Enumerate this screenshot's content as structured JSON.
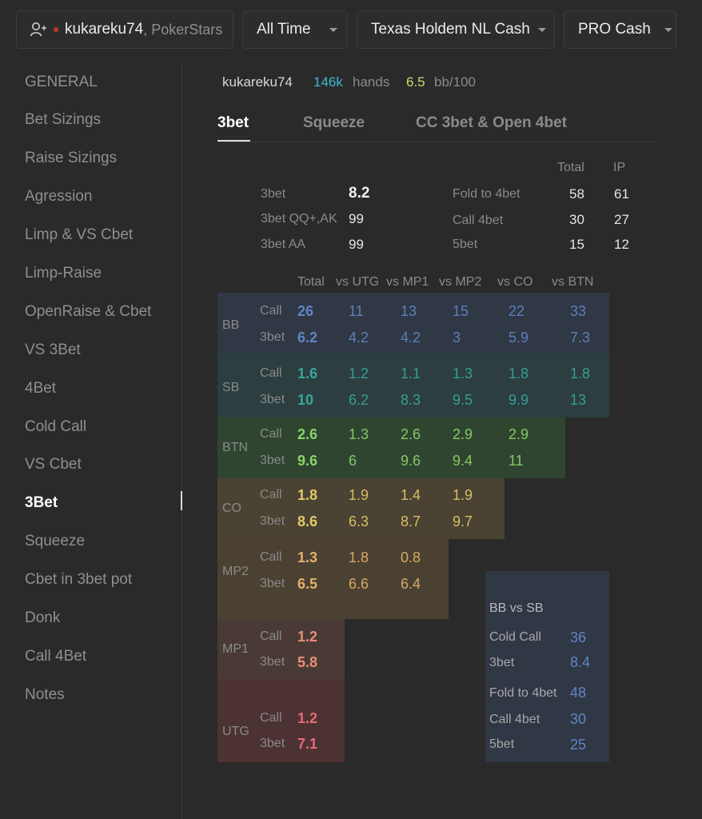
{
  "topbar": {
    "player_name": "kukareku74",
    "site": ", PokerStars",
    "time_filter": "All Time",
    "game": "Texas Holdem NL Cash",
    "profile": "PRO Cash"
  },
  "sidebar": {
    "items": [
      {
        "label": "GENERAL"
      },
      {
        "label": "Bet Sizings"
      },
      {
        "label": "Raise Sizings"
      },
      {
        "label": "Agression"
      },
      {
        "label": "Limp & VS Cbet"
      },
      {
        "label": "Limp-Raise"
      },
      {
        "label": "OpenRaise & Cbet"
      },
      {
        "label": "VS 3Bet"
      },
      {
        "label": "4Bet"
      },
      {
        "label": "Cold Call"
      },
      {
        "label": "VS Cbet"
      },
      {
        "label": "3Bet"
      },
      {
        "label": "Squeeze"
      },
      {
        "label": "Cbet in 3bet pot"
      },
      {
        "label": "Donk"
      },
      {
        "label": "Call 4Bet"
      },
      {
        "label": "Notes"
      }
    ],
    "active_index": 11
  },
  "header": {
    "player": "kukareku74",
    "hands_value": "146k",
    "hands_label": "hands",
    "bb_value": "6.5",
    "bb_label": "bb/100"
  },
  "tabs": [
    "3bet",
    "Squeeze",
    "CC 3bet & Open 4bet"
  ],
  "summary": {
    "col_total": "Total",
    "col_ip": "IP",
    "left": [
      {
        "label": "3bet",
        "value": "8.2"
      },
      {
        "label": "3bet QQ+,AK",
        "value": "99"
      },
      {
        "label": "3bet AA",
        "value": "99"
      }
    ],
    "right": [
      {
        "label": "Fold to 4bet",
        "total": "58",
        "ip": "61"
      },
      {
        "label": "Call 4bet",
        "total": "30",
        "ip": "27"
      },
      {
        "label": "5bet",
        "total": "15",
        "ip": "12"
      }
    ]
  },
  "matrix": {
    "columns": [
      "Total",
      "vs UTG",
      "vs MP1",
      "vs MP2",
      "vs CO",
      "vs BTN"
    ],
    "row_labels": [
      "Call",
      "3bet"
    ],
    "positions": [
      {
        "name": "BB",
        "call": [
          "26",
          "11",
          "13",
          "15",
          "22",
          "33"
        ],
        "threebet": [
          "6.2",
          "4.2",
          "4.2",
          "3",
          "5.9",
          "7.3"
        ]
      },
      {
        "name": "SB",
        "call": [
          "1.6",
          "1.2",
          "1.1",
          "1.3",
          "1.8",
          "1.8"
        ],
        "threebet": [
          "10",
          "6.2",
          "8.3",
          "9.5",
          "9.9",
          "13"
        ]
      },
      {
        "name": "BTN",
        "call": [
          "2.6",
          "1.3",
          "2.6",
          "2.9",
          "2.9"
        ],
        "threebet": [
          "9.6",
          "6",
          "9.6",
          "9.4",
          "11"
        ]
      },
      {
        "name": "CO",
        "call": [
          "1.8",
          "1.9",
          "1.4",
          "1.9"
        ],
        "threebet": [
          "8.6",
          "6.3",
          "8.7",
          "9.7"
        ]
      },
      {
        "name": "MP2",
        "call": [
          "1.3",
          "1.8",
          "0.8"
        ],
        "threebet": [
          "6.5",
          "6.6",
          "6.4"
        ]
      },
      {
        "name": "MP1",
        "call": [
          "1.2"
        ],
        "threebet": [
          "5.8"
        ]
      },
      {
        "name": "UTG",
        "call": [
          "1.2"
        ],
        "threebet": [
          "7.1"
        ]
      }
    ]
  },
  "bb_vs_sb": {
    "title": "BB vs SB",
    "rows": [
      {
        "label": "Cold Call",
        "value": "36"
      },
      {
        "label": "3bet",
        "value": "8.4"
      },
      {
        "label": "Fold to 4bet",
        "value": "48"
      },
      {
        "label": "Call 4bet",
        "value": "30"
      },
      {
        "label": "5bet",
        "value": "25"
      }
    ]
  },
  "colors": {
    "bb_bg": "#303745",
    "bb_fg": "#5f86c4",
    "sb_bg": "#2c3e3f",
    "sb_fg": "#3aa59e",
    "btn_bg": "#2f4530",
    "btn_fg": "#8bd36b",
    "co_bg": "#4a4232",
    "co_fg": "#e2c96a",
    "mp2_bg": "#4a4132",
    "mp2_fg": "#e6b06a",
    "mp1_bg": "#4a3a36",
    "mp1_fg": "#ea8e78",
    "utg_bg": "#4d3233",
    "utg_fg": "#e86a76"
  }
}
